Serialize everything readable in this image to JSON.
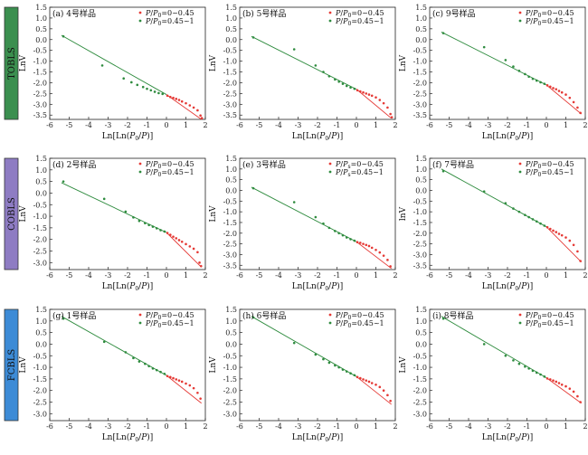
{
  "figure": {
    "groups": [
      {
        "label": "TOBLS",
        "color": "#3b8f4f"
      },
      {
        "label": "COBLS",
        "color": "#8e7cc3"
      },
      {
        "label": "FCBLS",
        "color": "#3d8bd6"
      }
    ]
  },
  "colors": {
    "low": "#e53935",
    "high": "#2e8b3e",
    "fit": "#2e8b3e"
  },
  "chart_data": [
    {
      "type": "scatter",
      "panel": "(a) 4号样品",
      "group": "TOBLS",
      "xlabel": "Ln[Ln(P0/P)]",
      "ylabel": "LnV",
      "xlim": [
        -6,
        2
      ],
      "ylim": [
        -3.7,
        1.5
      ],
      "xticks": [
        -6,
        -5,
        -4,
        -3,
        -2,
        -1,
        0,
        1,
        2
      ],
      "yticks": [
        1.5,
        1.0,
        0.5,
        0.0,
        -0.5,
        -1.0,
        -1.5,
        -2.0,
        -2.5,
        -3.0,
        -3.5
      ],
      "legend": [
        {
          "sub": "0",
          "range": "0~0.45"
        },
        {
          "sub": "0",
          "range": "0.45~1"
        }
      ],
      "fit_high": [
        [
          -5.4,
          0.2
        ],
        [
          0,
          -2.55
        ]
      ],
      "fit_low": [
        [
          0,
          -2.55
        ],
        [
          1.8,
          -3.7
        ]
      ],
      "series": [
        {
          "name": "P/P0=0~0.45",
          "x": [
            0.05,
            0.2,
            0.35,
            0.5,
            0.65,
            0.8,
            1.0,
            1.2,
            1.4,
            1.6,
            1.75,
            1.82
          ],
          "y": [
            -2.6,
            -2.66,
            -2.7,
            -2.75,
            -2.8,
            -2.87,
            -2.95,
            -3.05,
            -3.15,
            -3.28,
            -3.52,
            -3.64
          ]
        },
        {
          "name": "P/P0=0.45~1",
          "x": [
            -5.3,
            -3.3,
            -2.2,
            -1.8,
            -1.5,
            -1.2,
            -1.0,
            -0.8,
            -0.6,
            -0.4,
            -0.2
          ],
          "y": [
            0.15,
            -1.2,
            -1.8,
            -1.98,
            -2.1,
            -2.2,
            -2.28,
            -2.35,
            -2.42,
            -2.48,
            -2.52
          ]
        }
      ]
    },
    {
      "type": "scatter",
      "panel": "(b) 5号样品",
      "group": "TOBLS",
      "xlabel": "Ln[Ln(P0/P)]",
      "ylabel": "LnV",
      "xlim": [
        -6,
        2
      ],
      "ylim": [
        -3.7,
        1.5
      ],
      "xticks": [
        -6,
        -5,
        -4,
        -3,
        -2,
        -1,
        0,
        1,
        2
      ],
      "yticks": [
        1.5,
        1.0,
        0.5,
        0.0,
        -0.5,
        -1.0,
        -1.5,
        -2.0,
        -2.5,
        -3.0,
        -3.5
      ],
      "legend": [
        {
          "sub": "0",
          "range": "0~0.45"
        },
        {
          "sub": "0",
          "range": "0.45~1"
        }
      ],
      "fit_high": [
        [
          -5.4,
          0.15
        ],
        [
          0,
          -2.3
        ]
      ],
      "fit_low": [
        [
          0,
          -2.3
        ],
        [
          1.8,
          -3.65
        ]
      ],
      "series": [
        {
          "name": "P/P0=0~0.45",
          "x": [
            0.05,
            0.2,
            0.35,
            0.5,
            0.65,
            0.8,
            1.0,
            1.2,
            1.4,
            1.6,
            1.75,
            1.82
          ],
          "y": [
            -2.35,
            -2.4,
            -2.45,
            -2.5,
            -2.55,
            -2.6,
            -2.68,
            -2.8,
            -2.95,
            -3.15,
            -3.45,
            -3.6
          ]
        },
        {
          "name": "P/P0=0.45~1",
          "x": [
            -5.3,
            -3.2,
            -2.1,
            -1.7,
            -1.4,
            -1.1,
            -0.9,
            -0.7,
            -0.5,
            -0.3,
            -0.1
          ],
          "y": [
            0.1,
            -0.45,
            -1.2,
            -1.5,
            -1.7,
            -1.85,
            -1.95,
            -2.05,
            -2.15,
            -2.22,
            -2.28
          ]
        }
      ]
    },
    {
      "type": "scatter",
      "panel": "(c) 9号样品",
      "group": "TOBLS",
      "xlabel": "Ln[Ln(P0/P)]",
      "ylabel": "LnV",
      "xlim": [
        -6,
        2
      ],
      "ylim": [
        -3.7,
        1.5
      ],
      "xticks": [
        -6,
        -5,
        -4,
        -3,
        -2,
        -1,
        0,
        1,
        2
      ],
      "yticks": [
        1.5,
        1.0,
        0.5,
        0.0,
        -0.5,
        -1.0,
        -1.5,
        -2.0,
        -2.5,
        -3.0,
        -3.5
      ],
      "legend": [
        {
          "sub": "0",
          "range": "0~0.45"
        },
        {
          "sub": "0",
          "range": "0.45~1"
        }
      ],
      "fit_high": [
        [
          -5.4,
          0.35
        ],
        [
          0,
          -2.1
        ]
      ],
      "fit_low": [
        [
          0,
          -2.1
        ],
        [
          1.8,
          -3.45
        ]
      ],
      "series": [
        {
          "name": "P/P0=0~0.45",
          "x": [
            0.05,
            0.2,
            0.35,
            0.5,
            0.65,
            0.8,
            1.0,
            1.2,
            1.4,
            1.6,
            1.75
          ],
          "y": [
            -2.12,
            -2.18,
            -2.25,
            -2.3,
            -2.38,
            -2.45,
            -2.55,
            -2.7,
            -2.9,
            -3.15,
            -3.4
          ]
        },
        {
          "name": "P/P0=0.45~1",
          "x": [
            -5.3,
            -3.2,
            -2.1,
            -1.7,
            -1.4,
            -1.1,
            -0.9,
            -0.7,
            -0.5,
            -0.3,
            -0.1
          ],
          "y": [
            0.3,
            -0.35,
            -0.95,
            -1.25,
            -1.45,
            -1.6,
            -1.72,
            -1.82,
            -1.9,
            -1.98,
            -2.05
          ]
        }
      ]
    },
    {
      "type": "scatter",
      "panel": "(d) 2号样品",
      "group": "COBLS",
      "xlabel": "Ln[Ln(P0/P)]",
      "ylabel": "LnV",
      "xlim": [
        -6,
        2
      ],
      "ylim": [
        -3.3,
        1.5
      ],
      "xticks": [
        -6,
        -5,
        -4,
        -3,
        -2,
        -1,
        0,
        1,
        2
      ],
      "yticks": [
        1.5,
        1.0,
        0.5,
        0.0,
        -0.5,
        -1.0,
        -1.5,
        -2.0,
        -2.5,
        -3.0
      ],
      "legend": [
        {
          "sub": "0",
          "range": "0~0.45"
        },
        {
          "sub": "0",
          "range": "0.45~1"
        }
      ],
      "fit_high": [
        [
          -5.4,
          0.45
        ],
        [
          0,
          -1.7
        ]
      ],
      "fit_low": [
        [
          0,
          -1.7
        ],
        [
          1.8,
          -3.2
        ]
      ],
      "series": [
        {
          "name": "P/P0=0~0.45",
          "x": [
            0.05,
            0.2,
            0.35,
            0.5,
            0.65,
            0.8,
            1.0,
            1.2,
            1.4,
            1.6,
            1.7,
            1.78
          ],
          "y": [
            -1.72,
            -1.8,
            -1.88,
            -1.95,
            -2.03,
            -2.1,
            -2.2,
            -2.3,
            -2.4,
            -2.55,
            -3.0,
            -3.15
          ]
        },
        {
          "name": "P/P0=0.45~1",
          "x": [
            -5.3,
            -3.2,
            -2.1,
            -1.7,
            -1.4,
            -1.1,
            -0.9,
            -0.7,
            -0.5,
            -0.3,
            -0.1
          ],
          "y": [
            0.5,
            -0.25,
            -0.8,
            -1.05,
            -1.2,
            -1.3,
            -1.38,
            -1.45,
            -1.52,
            -1.6,
            -1.66
          ]
        }
      ]
    },
    {
      "type": "scatter",
      "panel": "(e) 3号样品",
      "group": "COBLS",
      "xlabel": "Ln[Ln(P0/P)]",
      "ylabel": "LnV",
      "xlim": [
        -6,
        2
      ],
      "ylim": [
        -3.7,
        1.5
      ],
      "xticks": [
        -6,
        -5,
        -4,
        -3,
        -2,
        -1,
        0,
        1,
        2
      ],
      "yticks": [
        1.5,
        1.0,
        0.5,
        0.0,
        -0.5,
        -1.0,
        -1.5,
        -2.0,
        -2.5,
        -3.0,
        -3.5
      ],
      "legend": [
        {
          "sub": "s",
          "range": "0~0.45"
        },
        {
          "sub": "s",
          "range": "0.45~1"
        }
      ],
      "fit_high": [
        [
          -5.4,
          0.15
        ],
        [
          0,
          -2.4
        ]
      ],
      "fit_low": [
        [
          0,
          -2.4
        ],
        [
          1.8,
          -3.65
        ]
      ],
      "series": [
        {
          "name": "P/Ps=0~0.45",
          "x": [
            0.05,
            0.2,
            0.35,
            0.5,
            0.65,
            0.8,
            1.0,
            1.2,
            1.4,
            1.6,
            1.75
          ],
          "y": [
            -2.42,
            -2.45,
            -2.5,
            -2.55,
            -2.6,
            -2.68,
            -2.78,
            -2.9,
            -3.05,
            -3.25,
            -3.55
          ]
        },
        {
          "name": "P/Ps=0.45~1",
          "x": [
            -5.3,
            -3.2,
            -2.1,
            -1.7,
            -1.4,
            -1.1,
            -0.9,
            -0.7,
            -0.5,
            -0.3,
            -0.1
          ],
          "y": [
            0.1,
            -0.55,
            -1.25,
            -1.55,
            -1.75,
            -1.9,
            -2.0,
            -2.1,
            -2.2,
            -2.28,
            -2.35
          ]
        }
      ]
    },
    {
      "type": "scatter",
      "panel": "(f) 7号样品",
      "group": "COBLS",
      "xlabel": "Ln[Ln(P0/P)]",
      "ylabel": "lnV",
      "xlim": [
        -6,
        2
      ],
      "ylim": [
        -3.7,
        1.5
      ],
      "xticks": [
        -6,
        -5,
        -4,
        -3,
        -2,
        -1,
        0,
        1,
        2
      ],
      "yticks": [
        1.5,
        1.0,
        0.5,
        0.0,
        -0.5,
        -1.0,
        -1.5,
        -2.0,
        -2.5,
        -3.0,
        -3.5
      ],
      "legend": [
        {
          "sub": "0",
          "range": "0~0.45"
        },
        {
          "sub": "0",
          "range": "0.45~1"
        }
      ],
      "fit_high": [
        [
          -5.4,
          1.0
        ],
        [
          0,
          -1.7
        ]
      ],
      "fit_low": [
        [
          0,
          -1.7
        ],
        [
          1.8,
          -3.35
        ]
      ],
      "series": [
        {
          "name": "P/P0=0~0.45",
          "x": [
            0.05,
            0.2,
            0.35,
            0.5,
            0.65,
            0.8,
            1.0,
            1.2,
            1.4,
            1.6,
            1.75
          ],
          "y": [
            -1.72,
            -1.8,
            -1.88,
            -1.95,
            -2.03,
            -2.1,
            -2.2,
            -2.35,
            -2.55,
            -2.85,
            -3.3
          ]
        },
        {
          "name": "P/P0=0.45~1",
          "x": [
            -5.3,
            -3.2,
            -2.1,
            -1.7,
            -1.4,
            -1.1,
            -0.9,
            -0.7,
            -0.5,
            -0.3,
            -0.1
          ],
          "y": [
            0.9,
            -0.05,
            -0.6,
            -0.85,
            -1.0,
            -1.15,
            -1.25,
            -1.35,
            -1.45,
            -1.55,
            -1.65
          ]
        }
      ]
    },
    {
      "type": "scatter",
      "panel": "(g) 1号样品",
      "group": "FCBLS",
      "xlabel": "Ln[Ln(P0/P)]",
      "ylabel": "LnV",
      "xlim": [
        -6,
        2
      ],
      "ylim": [
        -3.3,
        1.5
      ],
      "xticks": [
        -6,
        -5,
        -4,
        -3,
        -2,
        -1,
        0,
        1,
        2
      ],
      "yticks": [
        1.5,
        1.0,
        0.5,
        0.0,
        -0.5,
        -1.0,
        -1.5,
        -2.0,
        -2.5,
        -3.0
      ],
      "legend": [
        {
          "sub": "0",
          "range": "0~0.45"
        },
        {
          "sub": "0",
          "range": "0.45~1"
        }
      ],
      "fit_high": [
        [
          -5.4,
          1.2
        ],
        [
          0,
          -1.35
        ]
      ],
      "fit_low": [
        [
          0,
          -1.35
        ],
        [
          1.8,
          -2.55
        ]
      ],
      "series": [
        {
          "name": "P/P0=0~0.45",
          "x": [
            0.05,
            0.2,
            0.35,
            0.5,
            0.65,
            0.8,
            1.0,
            1.2,
            1.4,
            1.6,
            1.75
          ],
          "y": [
            -1.38,
            -1.42,
            -1.47,
            -1.52,
            -1.57,
            -1.62,
            -1.7,
            -1.78,
            -1.9,
            -2.1,
            -2.35
          ]
        },
        {
          "name": "P/P0=0.45~1",
          "x": [
            -5.3,
            -3.2,
            -2.1,
            -1.7,
            -1.4,
            -1.1,
            -0.9,
            -0.7,
            -0.5,
            -0.3,
            -0.1
          ],
          "y": [
            1.1,
            0.1,
            -0.35,
            -0.6,
            -0.75,
            -0.85,
            -0.95,
            -1.05,
            -1.12,
            -1.2,
            -1.28
          ]
        }
      ]
    },
    {
      "type": "scatter",
      "panel": "(h) 6号样品",
      "group": "FCBLS",
      "xlabel": "Ln[Ln(P0/P)]",
      "ylabel": "LnV",
      "xlim": [
        -6,
        2
      ],
      "ylim": [
        -3.3,
        1.5
      ],
      "xticks": [
        -6,
        -5,
        -4,
        -3,
        -2,
        -1,
        0,
        1,
        2
      ],
      "yticks": [
        1.5,
        1.0,
        0.5,
        0.0,
        -0.5,
        -1.0,
        -1.5,
        -2.0,
        -2.5,
        -3.0
      ],
      "legend": [
        {
          "sub": "0",
          "range": "0~0.45"
        },
        {
          "sub": "0",
          "range": "0.45~1"
        }
      ],
      "fit_high": [
        [
          -5.4,
          1.2
        ],
        [
          0,
          -1.4
        ]
      ],
      "fit_low": [
        [
          0,
          -1.4
        ],
        [
          1.8,
          -2.6
        ]
      ],
      "series": [
        {
          "name": "P/P0=0~0.45",
          "x": [
            0.05,
            0.2,
            0.35,
            0.5,
            0.65,
            0.8,
            1.0,
            1.2,
            1.4,
            1.6,
            1.75
          ],
          "y": [
            -1.42,
            -1.47,
            -1.52,
            -1.57,
            -1.62,
            -1.68,
            -1.75,
            -1.85,
            -2.0,
            -2.2,
            -2.45
          ]
        },
        {
          "name": "P/P0=0.45~1",
          "x": [
            -5.3,
            -3.2,
            -2.1,
            -1.7,
            -1.4,
            -1.1,
            -0.9,
            -0.7,
            -0.5,
            -0.3,
            -0.1
          ],
          "y": [
            1.15,
            0.05,
            -0.45,
            -0.65,
            -0.8,
            -0.92,
            -1.0,
            -1.1,
            -1.18,
            -1.26,
            -1.34
          ]
        }
      ]
    },
    {
      "type": "scatter",
      "panel": "(i) 8号样品",
      "group": "FCBLS",
      "xlabel": "Ln[Ln(P0/P)]",
      "ylabel": "LnV",
      "xlim": [
        -6,
        2
      ],
      "ylim": [
        -3.3,
        1.5
      ],
      "xticks": [
        -6,
        -5,
        -4,
        -3,
        -2,
        -1,
        0,
        1,
        2
      ],
      "yticks": [
        1.5,
        1.0,
        0.5,
        0.0,
        -0.5,
        -1.0,
        -1.5,
        -2.0,
        -2.5,
        -3.0
      ],
      "legend": [
        {
          "sub": "0",
          "range": "0~0.45"
        },
        {
          "sub": "0",
          "range": "0.45~1"
        }
      ],
      "fit_high": [
        [
          -5.4,
          1.2
        ],
        [
          0,
          -1.45
        ]
      ],
      "fit_low": [
        [
          0,
          -1.45
        ],
        [
          1.8,
          -2.55
        ]
      ],
      "series": [
        {
          "name": "P/P0=0~0.45",
          "x": [
            0.05,
            0.2,
            0.35,
            0.5,
            0.65,
            0.8,
            1.0,
            1.2,
            1.4,
            1.6,
            1.75
          ],
          "y": [
            -1.48,
            -1.52,
            -1.57,
            -1.62,
            -1.68,
            -1.75,
            -1.82,
            -1.92,
            -2.05,
            -2.25,
            -2.5
          ]
        },
        {
          "name": "P/P0=0.45~1",
          "x": [
            -5.3,
            -3.2,
            -2.1,
            -1.7,
            -1.4,
            -1.1,
            -0.9,
            -0.7,
            -0.5,
            -0.3,
            -0.1
          ],
          "y": [
            1.1,
            0.0,
            -0.5,
            -0.7,
            -0.85,
            -0.97,
            -1.05,
            -1.15,
            -1.23,
            -1.31,
            -1.4
          ]
        }
      ]
    }
  ]
}
